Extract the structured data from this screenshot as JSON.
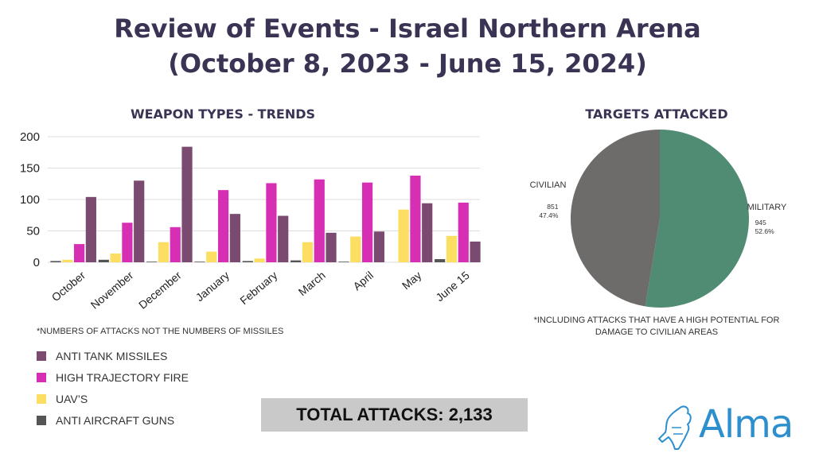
{
  "title_line1": "Review of Events - Israel Northern Arena",
  "title_line2": "(October 8, 2023 - June 15, 2024)",
  "bar_section_title": "WEAPON TYPES - TRENDS",
  "pie_section_title": "TARGETS ATTACKED",
  "bar_footnote": "*NUMBERS OF ATTACKS NOT THE NUMBERS OF MISSILES",
  "pie_footnote": "*INCLUDING ATTACKS THAT HAVE A HIGH POTENTIAL FOR DAMAGE TO CIVILIAN AREAS",
  "total_label": "TOTAL ATTACKS: 2,133",
  "logo_text": "Alma",
  "colors": {
    "anti_tank": "#7b4a70",
    "high_trajectory": "#d62fb4",
    "uav": "#fcdf62",
    "anti_aircraft": "#555555",
    "military": "#4f8c73",
    "civilian": "#6e6b6b",
    "title": "#3b3354",
    "logo": "#2e8fcf"
  },
  "chart_data": [
    {
      "type": "bar",
      "categories": [
        "October",
        "November",
        "December",
        "January",
        "February",
        "March",
        "April",
        "May",
        "June 15"
      ],
      "ylim": [
        0,
        200
      ],
      "yticks": [
        0,
        50,
        100,
        150,
        200
      ],
      "grid": true,
      "series": [
        {
          "name": "ANTI AIRCRAFT GUNS",
          "key": "anti_aircraft",
          "values": [
            2,
            4,
            1,
            1,
            2,
            3,
            1,
            0,
            5
          ]
        },
        {
          "name": "UAV'S",
          "key": "uav",
          "values": [
            4,
            14,
            32,
            17,
            6,
            32,
            41,
            84,
            42
          ]
        },
        {
          "name": "HIGH TRAJECTORY FIRE",
          "key": "high_trajectory",
          "values": [
            29,
            63,
            56,
            115,
            126,
            132,
            127,
            138,
            95
          ]
        },
        {
          "name": "ANTI TANK MISSILES",
          "key": "anti_tank",
          "values": [
            104,
            130,
            184,
            77,
            74,
            47,
            49,
            94,
            33
          ]
        }
      ],
      "legend_order": [
        "anti_tank",
        "high_trajectory",
        "uav",
        "anti_aircraft"
      ],
      "legend_labels": {
        "anti_tank": "ANTI TANK MISSILES",
        "high_trajectory": "HIGH TRAJECTORY FIRE",
        "uav": "UAV’S",
        "anti_aircraft": "ANTI AIRCRAFT GUNS"
      }
    },
    {
      "type": "pie",
      "slices": [
        {
          "label": "MILITARY",
          "value": 945,
          "percent_label": "52.6%",
          "value_label": "945",
          "color_key": "military"
        },
        {
          "label": "CIVILIAN",
          "value": 851,
          "percent_label": "47.4%",
          "value_label": "851",
          "color_key": "civilian"
        }
      ]
    }
  ]
}
